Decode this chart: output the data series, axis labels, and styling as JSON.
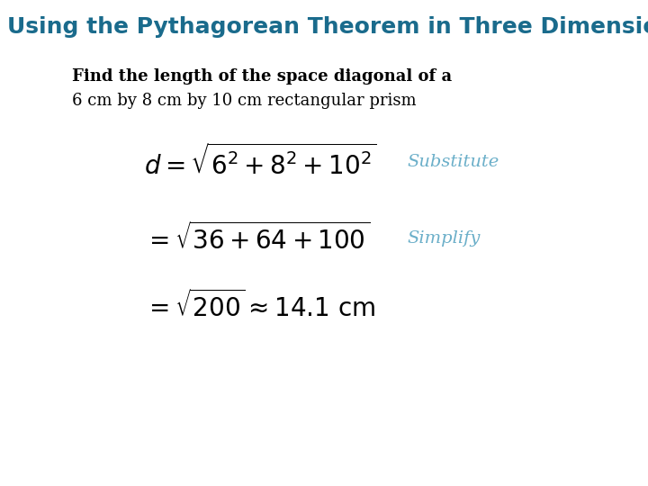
{
  "title": "Using the Pythagorean Theorem in Three Dimensions",
  "title_color": "#1a6b8c",
  "background_color": "#ffffff",
  "body_text_color": "#000000",
  "annotation_color": "#6bafc9",
  "subtitle_line1": "Find the length of the space diagonal of a",
  "subtitle_line2": "6 cm by 8 cm by 10 cm rectangular prism",
  "eq1_note": "Substitute",
  "eq2_note": "Simplify",
  "title_fontsize": 18,
  "subtitle_fontsize": 13,
  "eq_fontsize": 20,
  "note_fontsize": 14
}
